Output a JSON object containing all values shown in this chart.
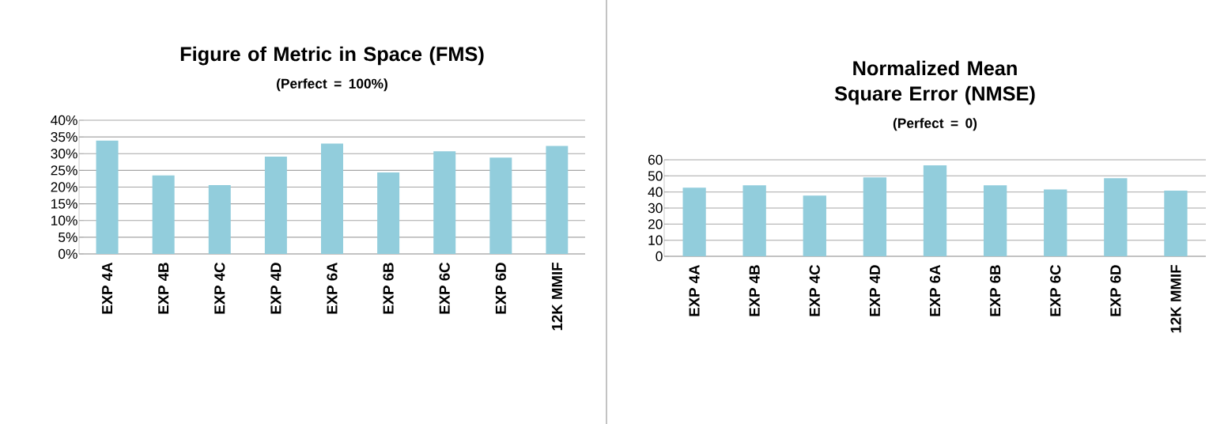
{
  "chart_data": [
    {
      "type": "bar",
      "title": "Figure of Metric in Space (FMS)",
      "subtitle": "(Perfect = 100%)",
      "categories": [
        "EXP 4A",
        "EXP 4B",
        "EXP 4C",
        "EXP 4D",
        "EXP 6A",
        "EXP 6B",
        "EXP 6C",
        "EXP 6D",
        "12K MMIF"
      ],
      "values": [
        33.9,
        23.5,
        20.6,
        29.1,
        33.0,
        24.4,
        30.7,
        28.8,
        32.3
      ],
      "color": "#92cddc",
      "ylim": [
        0,
        40
      ],
      "yticks": [
        {
          "value": 0,
          "label": "0%"
        },
        {
          "value": 5,
          "label": "5%"
        },
        {
          "value": 10,
          "label": "10%"
        },
        {
          "value": 15,
          "label": "15%"
        },
        {
          "value": 20,
          "label": "20%"
        },
        {
          "value": 25,
          "label": "25%"
        },
        {
          "value": 30,
          "label": "30%"
        },
        {
          "value": 35,
          "label": "35%"
        },
        {
          "value": 40,
          "label": "40%"
        }
      ],
      "grid": "y"
    },
    {
      "type": "bar",
      "title": "Normalized Mean Square Error (NMSE)",
      "subtitle": "(Perfect = 0)",
      "categories": [
        "EXP 4A",
        "EXP 4B",
        "EXP 4C",
        "EXP 4D",
        "EXP 6A",
        "EXP 6B",
        "EXP 6C",
        "EXP 6D",
        "12K MMIF"
      ],
      "values": [
        42.7,
        44.1,
        37.7,
        49.1,
        56.6,
        44.1,
        41.5,
        48.6,
        40.8
      ],
      "color": "#92cddc",
      "ylim": [
        0,
        60
      ],
      "yticks": [
        0,
        10,
        20,
        30,
        40,
        50,
        60
      ],
      "grid": "y"
    }
  ]
}
